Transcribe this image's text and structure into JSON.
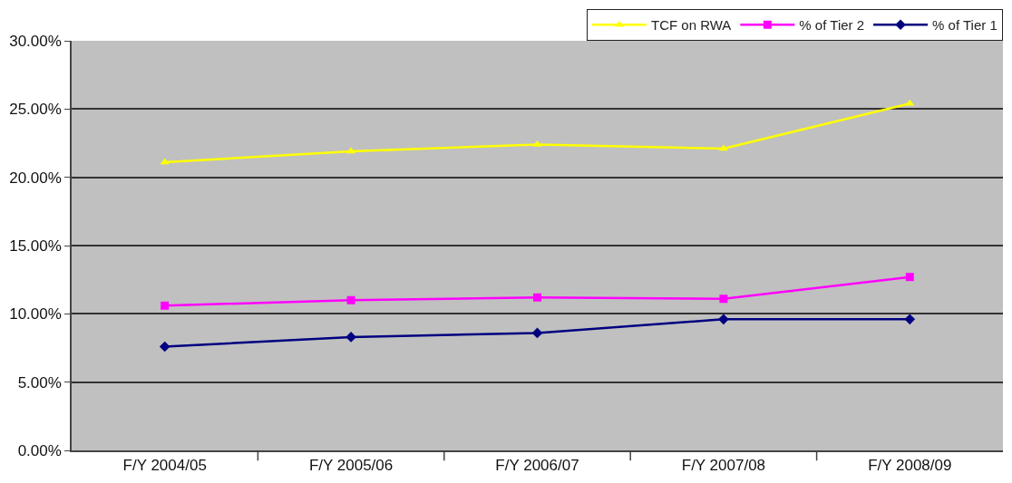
{
  "chart_data": {
    "type": "line",
    "categories": [
      "F/Y 2004/05",
      "F/Y 2005/06",
      "F/Y 2006/07",
      "F/Y 2007/08",
      "F/Y 2008/09"
    ],
    "series": [
      {
        "name": "TCF on RWA",
        "color": "#ffff00",
        "marker": "triangle",
        "values": [
          21.1,
          21.9,
          22.4,
          22.1,
          25.4
        ]
      },
      {
        "name": "% of Tier 2",
        "color": "#ff00ff",
        "marker": "square",
        "values": [
          10.6,
          11.0,
          11.2,
          11.1,
          12.7
        ]
      },
      {
        "name": "% of Tier 1",
        "color": "#000080",
        "marker": "diamond",
        "values": [
          7.6,
          8.3,
          8.6,
          9.6,
          9.6
        ]
      }
    ],
    "ylim": [
      0,
      30
    ],
    "yticks": [
      {
        "value": 0,
        "label": "0.00%"
      },
      {
        "value": 5,
        "label": "5.00%"
      },
      {
        "value": 10,
        "label": "10.00%"
      },
      {
        "value": 15,
        "label": "15.00%"
      },
      {
        "value": 20,
        "label": "20.00%"
      },
      {
        "value": 25,
        "label": "25.00%"
      },
      {
        "value": 30,
        "label": "30.00%"
      }
    ],
    "grid": "y",
    "legend": "top right",
    "line_style": "solid"
  }
}
